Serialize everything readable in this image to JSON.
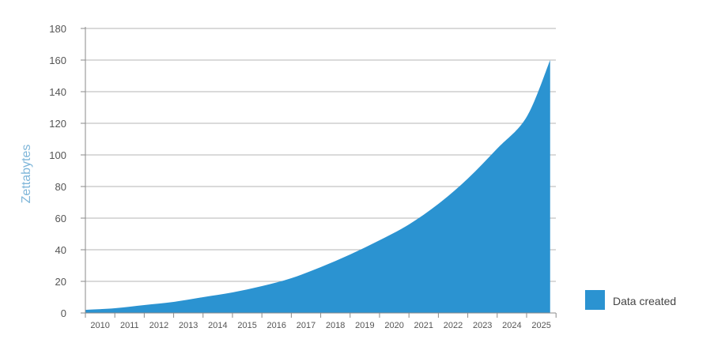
{
  "chart_data": {
    "type": "area",
    "title": "",
    "xlabel": "",
    "ylabel": "Zettabytes",
    "ylim": [
      0,
      180
    ],
    "yticks": [
      0,
      20,
      40,
      60,
      80,
      100,
      120,
      140,
      160,
      180
    ],
    "categories": [
      "2010",
      "2011",
      "2012",
      "2013",
      "2014",
      "2015",
      "2016",
      "2017",
      "2018",
      "2019",
      "2020",
      "2021",
      "2022",
      "2023",
      "2024",
      "2025"
    ],
    "grid": true,
    "legend_position": "bottom-right",
    "colors": {
      "area": "#2b93d1",
      "ylabel": "#7fb6d9",
      "grid": "#b5b5b5",
      "axis": "#8a8a8a"
    },
    "series": [
      {
        "name": "Data created",
        "x": [
          2010,
          2011,
          2012,
          2013,
          2014,
          2015,
          2016,
          2017,
          2018,
          2019,
          2020,
          2021,
          2022,
          2023,
          2024,
          2025
        ],
        "values": [
          2,
          3,
          5,
          7,
          10,
          13,
          17,
          22,
          29,
          37,
          46,
          56,
          69,
          85,
          104,
          124
        ],
        "end": {
          "x": 2025.8,
          "y": 160
        }
      }
    ]
  }
}
